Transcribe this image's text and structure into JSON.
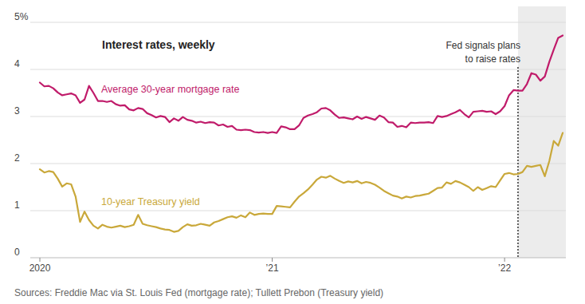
{
  "chart_data": {
    "type": "line",
    "title": "Interest rates, weekly",
    "source": "Sources: Freddie Mac via St. Louis Fed (mortgage rate); Tullett Prebon (Treasury yield)",
    "categories": [
      "2020",
      null,
      null,
      null,
      null,
      null,
      null,
      null,
      null,
      null,
      null,
      null,
      null,
      null,
      null,
      null,
      null,
      null,
      null,
      null,
      null,
      null,
      null,
      null,
      null,
      null,
      null,
      null,
      null,
      null,
      null,
      null,
      null,
      null,
      null,
      null,
      null,
      null,
      null,
      null,
      null,
      null,
      null,
      null,
      null,
      null,
      null,
      null,
      null,
      null,
      null,
      null,
      "’21",
      null,
      null,
      null,
      null,
      null,
      null,
      null,
      null,
      null,
      null,
      null,
      null,
      null,
      null,
      null,
      null,
      null,
      null,
      null,
      null,
      null,
      null,
      null,
      null,
      null,
      null,
      null,
      null,
      null,
      null,
      null,
      null,
      null,
      null,
      null,
      null,
      null,
      null,
      null,
      null,
      null,
      null,
      null,
      null,
      null,
      null,
      null,
      null,
      null,
      null,
      null,
      "’22",
      null,
      null,
      null,
      null,
      null,
      null,
      null,
      null,
      null,
      null,
      null,
      null,
      null
    ],
    "series": [
      {
        "name": "Average 30-year mortgage rate",
        "color": "#c01b6a",
        "values": [
          3.72,
          3.64,
          3.65,
          3.6,
          3.51,
          3.45,
          3.47,
          3.49,
          3.45,
          3.29,
          3.36,
          3.65,
          3.5,
          3.33,
          3.33,
          3.31,
          3.33,
          3.26,
          3.23,
          3.24,
          3.15,
          3.13,
          3.18,
          3.16,
          3.07,
          3.03,
          2.98,
          3.01,
          2.99,
          2.88,
          2.96,
          2.91,
          2.99,
          2.93,
          2.91,
          2.87,
          2.89,
          2.86,
          2.88,
          2.87,
          2.81,
          2.83,
          2.78,
          2.8,
          2.72,
          2.71,
          2.72,
          2.71,
          2.67,
          2.66,
          2.67,
          2.65,
          2.67,
          2.65,
          2.79,
          2.77,
          2.73,
          2.73,
          2.81,
          2.97,
          3.02,
          3.05,
          3.09,
          3.17,
          3.18,
          3.13,
          3.04,
          2.97,
          2.98,
          2.96,
          2.94,
          3.0,
          2.95,
          2.99,
          2.96,
          2.93,
          3.02,
          2.98,
          2.88,
          2.87,
          2.78,
          2.8,
          2.77,
          2.87,
          2.86,
          2.87,
          2.87,
          2.88,
          2.86,
          3.01,
          2.99,
          3.01,
          3.05,
          3.09,
          3.14,
          3.05,
          2.98,
          3.1,
          3.11,
          3.12,
          3.1,
          3.11,
          3.05,
          3.11,
          3.22,
          3.45,
          3.56,
          3.55,
          3.55,
          3.69,
          3.92,
          3.89,
          3.76,
          3.85,
          4.16,
          4.42,
          4.67,
          4.72
        ]
      },
      {
        "name": "10-year Treasury yield",
        "color": "#c9a83a",
        "values": [
          1.88,
          1.81,
          1.84,
          1.82,
          1.68,
          1.51,
          1.58,
          1.56,
          1.3,
          0.76,
          0.98,
          0.8,
          0.68,
          0.62,
          0.7,
          0.66,
          0.64,
          0.66,
          0.68,
          0.65,
          0.67,
          0.7,
          0.91,
          0.72,
          0.69,
          0.67,
          0.65,
          0.62,
          0.6,
          0.59,
          0.55,
          0.57,
          0.65,
          0.71,
          0.68,
          0.69,
          0.72,
          0.7,
          0.68,
          0.75,
          0.78,
          0.82,
          0.86,
          0.88,
          0.85,
          0.9,
          0.86,
          0.96,
          0.91,
          0.93,
          0.94,
          0.93,
          0.93,
          1.1,
          1.09,
          1.08,
          1.07,
          1.19,
          1.3,
          1.37,
          1.45,
          1.55,
          1.66,
          1.72,
          1.7,
          1.74,
          1.68,
          1.63,
          1.59,
          1.62,
          1.6,
          1.63,
          1.58,
          1.61,
          1.59,
          1.55,
          1.49,
          1.42,
          1.37,
          1.32,
          1.3,
          1.26,
          1.3,
          1.28,
          1.31,
          1.32,
          1.34,
          1.36,
          1.42,
          1.48,
          1.49,
          1.6,
          1.57,
          1.63,
          1.6,
          1.55,
          1.5,
          1.42,
          1.5,
          1.44,
          1.48,
          1.52,
          1.5,
          1.64,
          1.78,
          1.8,
          1.77,
          1.78,
          1.82,
          1.95,
          1.93,
          1.95,
          1.97,
          1.73,
          2.05,
          2.48,
          2.38,
          2.65
        ]
      }
    ],
    "ylim": [
      0,
      5
    ],
    "yticks": [
      0,
      1,
      2,
      3,
      4,
      {
        "value": 5,
        "label": "5%"
      }
    ],
    "grid": true,
    "annotations": [
      {
        "text": [
          "Fed signals plans",
          "to raise rates"
        ],
        "index": 107
      }
    ]
  }
}
